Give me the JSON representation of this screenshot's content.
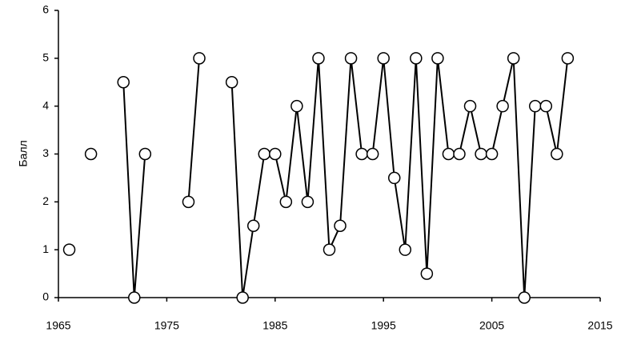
{
  "chart_data": {
    "type": "line",
    "ylabel": "Балл",
    "x": [
      1966,
      1967,
      1968,
      1969,
      1970,
      1971,
      1972,
      1973,
      1974,
      1975,
      1976,
      1977,
      1978,
      1979,
      1980,
      1981,
      1982,
      1983,
      1984,
      1985,
      1986,
      1987,
      1988,
      1989,
      1990,
      1991,
      1992,
      1993,
      1994,
      1995,
      1996,
      1997,
      1998,
      1999,
      2000,
      2001,
      2002,
      2003,
      2004,
      2005,
      2006,
      2007,
      2008,
      2009,
      2010,
      2011,
      2012
    ],
    "series": [
      {
        "color": "#000000",
        "values": [
          1,
          null,
          3,
          null,
          null,
          4.5,
          0,
          3,
          null,
          null,
          null,
          2,
          5,
          null,
          null,
          4.5,
          0,
          1.5,
          3,
          3,
          2,
          4,
          2,
          5,
          1,
          1.5,
          5,
          3,
          3,
          5,
          2.5,
          1,
          5,
          0.5,
          5,
          3,
          3,
          4,
          3,
          3,
          4,
          5,
          0,
          4,
          4,
          3,
          5
        ]
      }
    ],
    "xlim": [
      1965,
      2015
    ],
    "xticks": [
      1965,
      1975,
      1985,
      1995,
      2005,
      2015
    ],
    "ylim": [
      0,
      6
    ],
    "yticks": [
      0,
      1,
      2,
      3,
      4,
      5,
      6
    ],
    "grid": false
  }
}
